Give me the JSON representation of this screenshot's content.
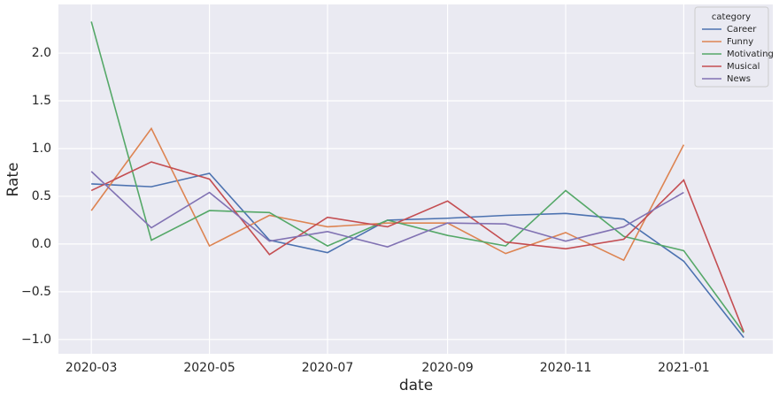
{
  "chart_data": {
    "type": "line",
    "xlabel": "date",
    "ylabel": "Rate",
    "legend_title": "category",
    "legend": "upper right",
    "grid": true,
    "x": [
      "2020-03",
      "2020-04",
      "2020-05",
      "2020-06",
      "2020-07",
      "2020-08",
      "2020-09",
      "2020-10",
      "2020-11",
      "2020-12",
      "2021-01",
      "2021-02"
    ],
    "xlim": [
      "2020-02-13",
      "2021-02-16"
    ],
    "xticks": [
      "2020-03",
      "2020-05",
      "2020-07",
      "2020-09",
      "2020-11",
      "2021-01"
    ],
    "ylim": [
      -1.15,
      2.51
    ],
    "yticks": [
      {
        "value": -1.0,
        "label": "−1.0"
      },
      {
        "value": -0.5,
        "label": "−0.5"
      },
      {
        "value": 0.0,
        "label": "0.0"
      },
      {
        "value": 0.5,
        "label": "0.5"
      },
      {
        "value": 1.0,
        "label": "1.0"
      },
      {
        "value": 1.5,
        "label": "1.5"
      },
      {
        "value": 2.0,
        "label": "2.0"
      }
    ],
    "series": [
      {
        "name": "Career",
        "color": "#4c72b0",
        "values": [
          0.63,
          0.6,
          0.74,
          0.04,
          -0.09,
          0.25,
          0.27,
          0.3,
          0.32,
          0.26,
          -0.18,
          -0.98
        ]
      },
      {
        "name": "Funny",
        "color": "#dd8452",
        "values": [
          0.35,
          1.21,
          -0.02,
          0.3,
          0.18,
          0.22,
          0.22,
          -0.1,
          0.12,
          -0.17,
          1.04,
          null
        ]
      },
      {
        "name": "Motivating",
        "color": "#55a868",
        "values": [
          2.33,
          0.04,
          0.35,
          0.33,
          -0.02,
          0.25,
          0.09,
          -0.02,
          0.56,
          0.08,
          -0.07,
          -0.93
        ]
      },
      {
        "name": "Musical",
        "color": "#c44e52",
        "values": [
          0.56,
          0.86,
          0.68,
          -0.11,
          0.28,
          0.18,
          0.45,
          0.02,
          -0.05,
          0.05,
          0.67,
          -0.92
        ]
      },
      {
        "name": "News",
        "color": "#8172b3",
        "values": [
          0.76,
          0.17,
          0.54,
          0.03,
          0.13,
          -0.03,
          0.22,
          0.21,
          0.03,
          0.18,
          0.54,
          null
        ]
      }
    ]
  }
}
